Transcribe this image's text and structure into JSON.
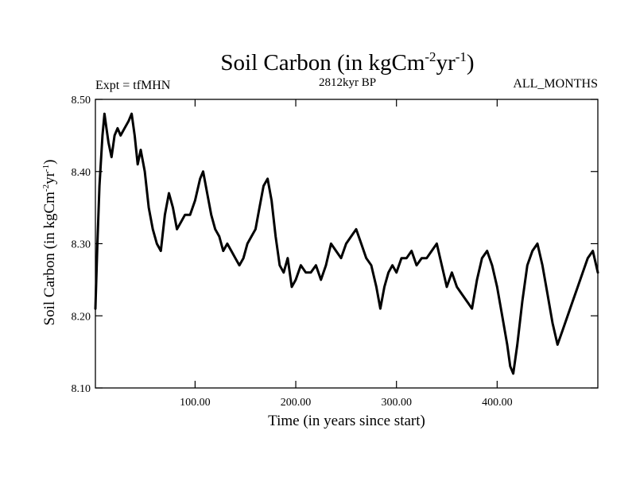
{
  "chart_data": {
    "type": "line",
    "title": {
      "main": "Soil Carbon (in kgCm",
      "sup1": "-2",
      "mid": "yr",
      "sup2": "-1",
      "end": ")"
    },
    "subtitle_left": "Expt = tfMHN",
    "subtitle_center": "2812kyr BP",
    "subtitle_right": "ALL_MONTHS",
    "xlabel": "Time (in years since start)",
    "ylabel": {
      "main": "Soil Carbon (in kgCm",
      "sup1": "-2",
      "mid": "yr",
      "sup2": "-1",
      "end": ")"
    },
    "xlim": [
      1,
      500
    ],
    "ylim": [
      8.1,
      8.5
    ],
    "x_ticks": [
      100,
      200,
      300,
      400
    ],
    "x_tick_labels": [
      "100.00",
      "200.00",
      "300.00",
      "400.00"
    ],
    "y_ticks": [
      8.1,
      8.2,
      8.3,
      8.4,
      8.5
    ],
    "y_tick_labels": [
      "8.10",
      "8.20",
      "8.30",
      "8.40",
      "8.50"
    ],
    "grid": false,
    "series": [
      {
        "name": "Soil Carbon",
        "color": "#000000",
        "x": [
          1,
          3,
          5,
          8,
          10,
          12,
          14,
          17,
          20,
          23,
          26,
          30,
          34,
          37,
          40,
          43,
          46,
          50,
          54,
          58,
          62,
          66,
          70,
          74,
          78,
          82,
          86,
          90,
          95,
          100,
          105,
          108,
          112,
          116,
          120,
          124,
          128,
          132,
          136,
          140,
          144,
          148,
          152,
          156,
          160,
          164,
          168,
          172,
          176,
          180,
          184,
          188,
          192,
          196,
          200,
          205,
          210,
          215,
          220,
          225,
          230,
          235,
          240,
          245,
          250,
          255,
          260,
          265,
          270,
          275,
          280,
          284,
          288,
          292,
          296,
          300,
          305,
          310,
          315,
          320,
          325,
          330,
          335,
          340,
          345,
          350,
          355,
          360,
          365,
          370,
          375,
          380,
          385,
          390,
          395,
          400,
          405,
          410,
          413,
          416,
          420,
          425,
          430,
          435,
          440,
          445,
          450,
          455,
          460,
          465,
          470,
          475,
          480,
          485,
          490,
          495,
          500
        ],
        "y": [
          8.21,
          8.3,
          8.38,
          8.45,
          8.48,
          8.46,
          8.44,
          8.42,
          8.45,
          8.46,
          8.45,
          8.46,
          8.47,
          8.48,
          8.45,
          8.41,
          8.43,
          8.4,
          8.35,
          8.32,
          8.3,
          8.29,
          8.34,
          8.37,
          8.35,
          8.32,
          8.33,
          8.34,
          8.34,
          8.36,
          8.39,
          8.4,
          8.37,
          8.34,
          8.32,
          8.31,
          8.29,
          8.3,
          8.29,
          8.28,
          8.27,
          8.28,
          8.3,
          8.31,
          8.32,
          8.35,
          8.38,
          8.39,
          8.36,
          8.31,
          8.27,
          8.26,
          8.28,
          8.24,
          8.25,
          8.27,
          8.26,
          8.26,
          8.27,
          8.25,
          8.27,
          8.3,
          8.29,
          8.28,
          8.3,
          8.31,
          8.32,
          8.3,
          8.28,
          8.27,
          8.24,
          8.21,
          8.24,
          8.26,
          8.27,
          8.26,
          8.28,
          8.28,
          8.29,
          8.27,
          8.28,
          8.28,
          8.29,
          8.3,
          8.27,
          8.24,
          8.26,
          8.24,
          8.23,
          8.22,
          8.21,
          8.25,
          8.28,
          8.29,
          8.27,
          8.24,
          8.2,
          8.16,
          8.13,
          8.12,
          8.16,
          8.22,
          8.27,
          8.29,
          8.3,
          8.27,
          8.23,
          8.19,
          8.16,
          8.18,
          8.2,
          8.22,
          8.24,
          8.26,
          8.28,
          8.29,
          8.26
        ]
      }
    ]
  }
}
